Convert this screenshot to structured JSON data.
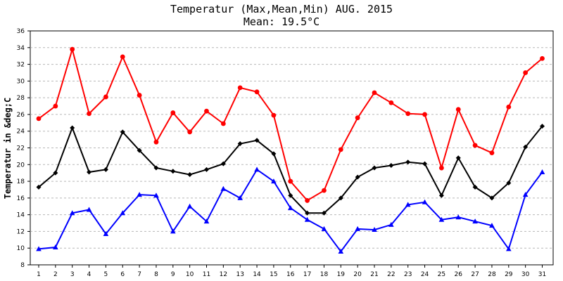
{
  "chart_data": {
    "type": "line",
    "title": "Temperatur (Max,Mean,Min) AUG. 2015",
    "subtitle": "Mean: 19.5°C",
    "xlabel": "",
    "ylabel": "Temperatur in &deg;C",
    "ylim": [
      8,
      36
    ],
    "yticks": [
      8,
      10,
      12,
      14,
      16,
      18,
      20,
      22,
      24,
      26,
      28,
      30,
      32,
      34,
      36
    ],
    "grid": true,
    "x": [
      1,
      2,
      3,
      4,
      5,
      6,
      7,
      8,
      9,
      10,
      11,
      12,
      13,
      14,
      15,
      16,
      17,
      18,
      19,
      20,
      21,
      22,
      23,
      24,
      25,
      26,
      27,
      28,
      29,
      30,
      31
    ],
    "series": [
      {
        "name": "Max",
        "color": "#ff0000",
        "marker": "circle",
        "values": [
          25.5,
          27.0,
          33.8,
          26.1,
          28.1,
          32.9,
          28.3,
          22.7,
          26.2,
          23.9,
          26.4,
          24.9,
          29.2,
          28.7,
          25.9,
          18.0,
          15.7,
          16.9,
          21.8,
          25.6,
          28.6,
          27.4,
          26.1,
          26.0,
          19.6,
          26.6,
          22.3,
          21.4,
          26.9,
          31.0,
          32.7
        ]
      },
      {
        "name": "Mean",
        "color": "#000000",
        "marker": "diamond",
        "values": [
          17.3,
          19.0,
          24.4,
          19.1,
          19.4,
          23.9,
          21.7,
          19.6,
          19.2,
          18.8,
          19.4,
          20.1,
          22.5,
          22.9,
          21.3,
          16.3,
          14.2,
          14.2,
          16.0,
          18.5,
          19.6,
          19.9,
          20.3,
          20.1,
          16.3,
          20.8,
          17.3,
          16.0,
          17.8,
          22.1,
          24.6
        ]
      },
      {
        "name": "Min",
        "color": "#0000ff",
        "marker": "triangle",
        "values": [
          9.9,
          10.1,
          14.2,
          14.6,
          11.7,
          14.2,
          16.4,
          16.3,
          12.0,
          15.0,
          13.2,
          17.1,
          16.0,
          19.4,
          18.0,
          14.8,
          13.4,
          12.3,
          9.6,
          12.3,
          12.2,
          12.8,
          15.2,
          15.5,
          13.4,
          13.7,
          13.2,
          12.7,
          9.9,
          16.4,
          19.1
        ]
      }
    ]
  }
}
